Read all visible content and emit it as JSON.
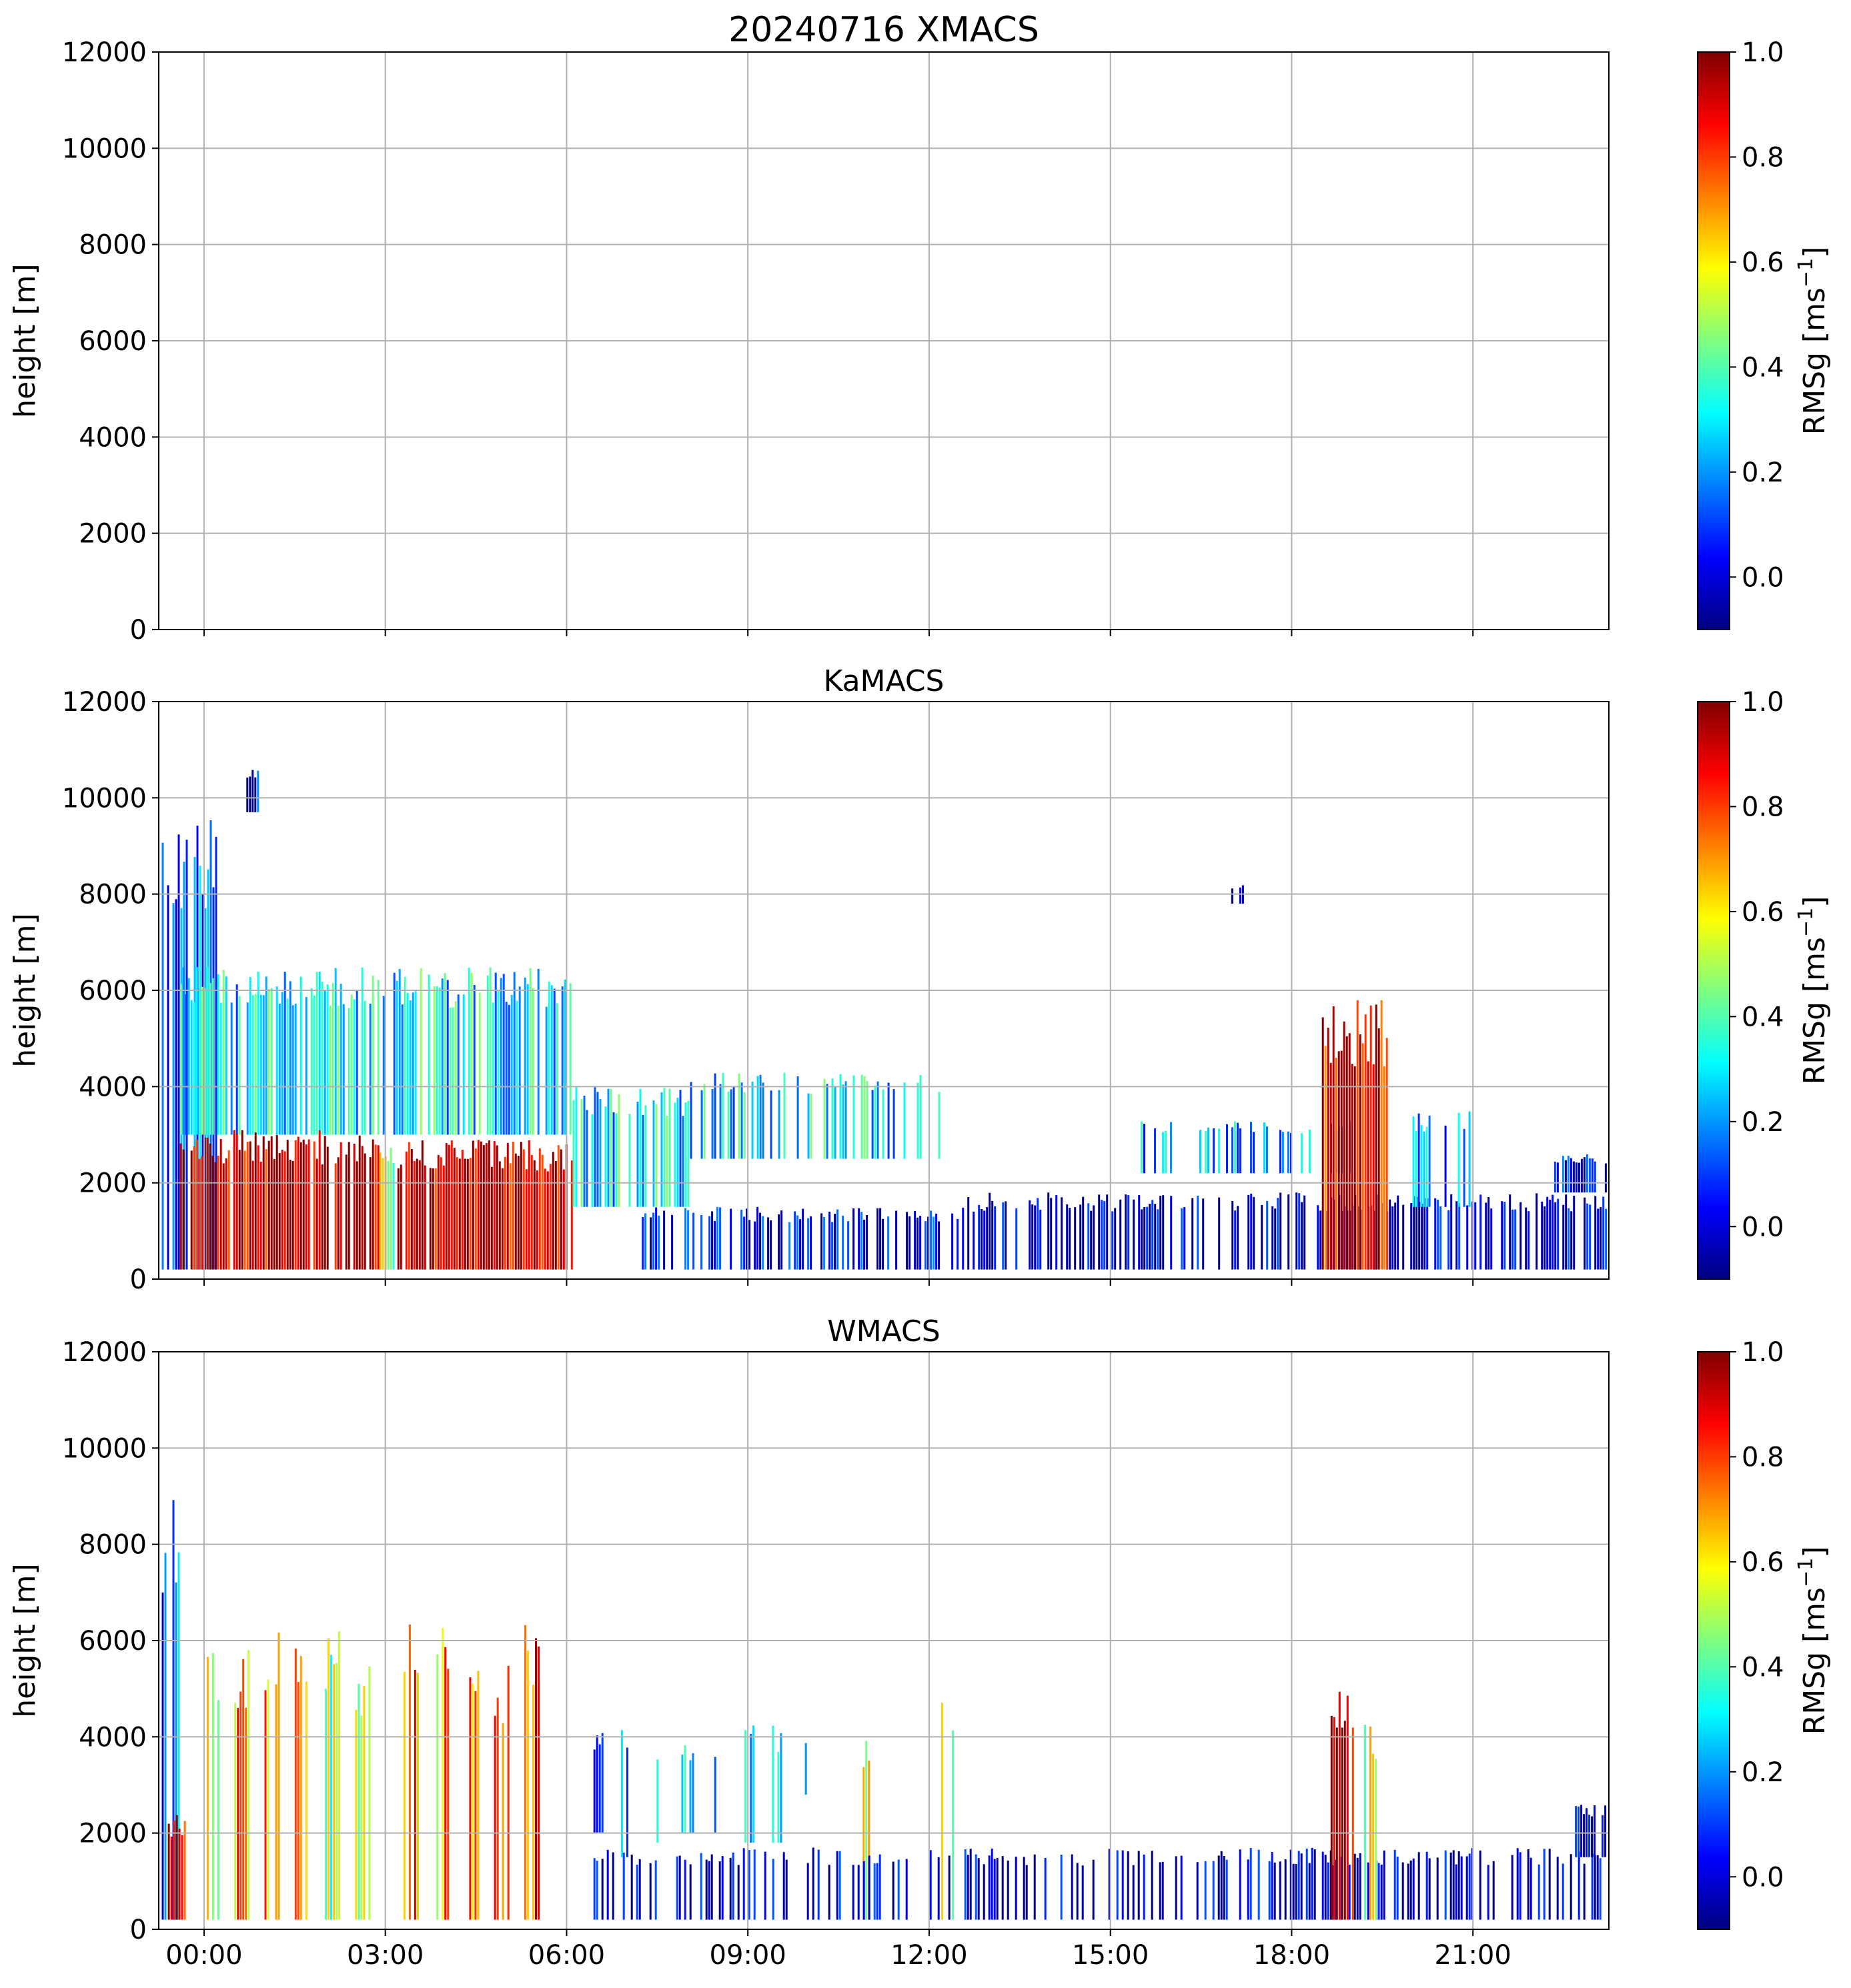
{
  "figure": {
    "title": "20240716 XMACS",
    "colorbar": {
      "label_prefix": "RMSg [ms",
      "label_sup": "−1",
      "label_suffix": "]",
      "min": -0.1,
      "max": 1.0,
      "ticks": [
        "0.0",
        "0.2",
        "0.4",
        "0.6",
        "0.8",
        "1.0"
      ],
      "tick_values": [
        0.0,
        0.2,
        0.4,
        0.6,
        0.8,
        1.0
      ],
      "colormap": "jet"
    }
  },
  "chart_data": [
    {
      "type": "heatmap",
      "title": "20240716 XMACS",
      "xlabel": "",
      "ylabel": "height [m]",
      "ylim": [
        0,
        12000
      ],
      "xlim_hours": [
        -0.75,
        23.25
      ],
      "yticks": [
        "0",
        "2000",
        "4000",
        "6000",
        "8000",
        "10000",
        "12000"
      ],
      "grid": true,
      "features": []
    },
    {
      "type": "heatmap",
      "title": "KaMACS",
      "xlabel": "",
      "ylabel": "height [m]",
      "ylim": [
        0,
        12000
      ],
      "xlim_hours": [
        -0.75,
        23.25
      ],
      "yticks": [
        "0",
        "2000",
        "4000",
        "6000",
        "8000",
        "10000",
        "12000"
      ],
      "grid": true,
      "features": [
        {
          "t0": -0.7,
          "t1": 0.2,
          "bottom": 200,
          "top": 9800,
          "value": 0.2,
          "density": 0.8
        },
        {
          "t0": -0.4,
          "t1": 6.1,
          "bottom": 3000,
          "top": 6500,
          "value": 0.35,
          "density": 0.75
        },
        {
          "t0": -0.4,
          "t1": 2.9,
          "bottom": 200,
          "top": 3100,
          "value": 0.95,
          "density": 0.9
        },
        {
          "t0": 2.9,
          "t1": 3.2,
          "bottom": 200,
          "top": 3000,
          "value": 0.55,
          "density": 0.85
        },
        {
          "t0": 3.2,
          "t1": 6.1,
          "bottom": 200,
          "top": 2900,
          "value": 0.95,
          "density": 0.9
        },
        {
          "t0": 6.1,
          "t1": 8.0,
          "bottom": 1500,
          "top": 4000,
          "value": 0.35,
          "density": 0.7
        },
        {
          "t0": 7.2,
          "t1": 12.5,
          "bottom": 200,
          "top": 1500,
          "value": 0.1,
          "density": 0.55
        },
        {
          "t0": 8.0,
          "t1": 12.2,
          "bottom": 2500,
          "top": 4300,
          "value": 0.35,
          "density": 0.45
        },
        {
          "t0": 12.5,
          "t1": 23.2,
          "bottom": 200,
          "top": 1800,
          "value": 0.05,
          "density": 0.6
        },
        {
          "t0": 15.5,
          "t1": 19.0,
          "bottom": 2200,
          "top": 3300,
          "value": 0.3,
          "density": 0.4
        },
        {
          "t0": 18.5,
          "t1": 19.6,
          "bottom": 200,
          "top": 5800,
          "value": 0.9,
          "density": 0.9
        },
        {
          "t0": 20.0,
          "t1": 21.0,
          "bottom": 1500,
          "top": 3500,
          "value": 0.25,
          "density": 0.45
        },
        {
          "t0": 22.3,
          "t1": 23.2,
          "bottom": 1800,
          "top": 2600,
          "value": 0.1,
          "density": 0.7
        },
        {
          "t0": 0.7,
          "t1": 0.9,
          "bottom": 9700,
          "top": 10600,
          "value": 0.1,
          "density": 0.9
        },
        {
          "t0": 17.0,
          "t1": 17.2,
          "bottom": 7800,
          "top": 8200,
          "value": 0.1,
          "density": 0.9
        }
      ]
    },
    {
      "type": "heatmap",
      "title": "WMACS",
      "xlabel": "",
      "ylabel": "height [m]",
      "ylim": [
        0,
        12000
      ],
      "xlim_hours": [
        -0.75,
        23.25
      ],
      "yticks": [
        "0",
        "2000",
        "4000",
        "6000",
        "8000",
        "10000",
        "12000"
      ],
      "grid": true,
      "features": [
        {
          "t0": -0.7,
          "t1": -0.4,
          "bottom": 200,
          "top": 9200,
          "value": 0.2,
          "density": 0.8
        },
        {
          "t0": -0.6,
          "t1": -0.3,
          "bottom": 200,
          "top": 2400,
          "value": 0.9,
          "density": 0.8
        },
        {
          "t0": 0.0,
          "t1": 0.25,
          "bottom": 200,
          "top": 6200,
          "value": 0.6,
          "density": 0.8
        },
        {
          "t0": 0.5,
          "t1": 0.75,
          "bottom": 200,
          "top": 6000,
          "value": 0.7,
          "density": 0.8
        },
        {
          "t0": 1.0,
          "t1": 1.25,
          "bottom": 200,
          "top": 6300,
          "value": 0.7,
          "density": 0.8
        },
        {
          "t0": 1.5,
          "t1": 1.75,
          "bottom": 200,
          "top": 6200,
          "value": 0.7,
          "density": 0.8
        },
        {
          "t0": 2.0,
          "t1": 2.25,
          "bottom": 200,
          "top": 6300,
          "value": 0.5,
          "density": 0.8
        },
        {
          "t0": 2.5,
          "t1": 2.75,
          "bottom": 200,
          "top": 5800,
          "value": 0.55,
          "density": 0.8
        },
        {
          "t0": 3.3,
          "t1": 3.55,
          "bottom": 200,
          "top": 7000,
          "value": 0.75,
          "density": 0.8
        },
        {
          "t0": 3.8,
          "t1": 4.05,
          "bottom": 200,
          "top": 6700,
          "value": 0.7,
          "density": 0.8
        },
        {
          "t0": 4.3,
          "t1": 4.55,
          "bottom": 200,
          "top": 6300,
          "value": 0.7,
          "density": 0.8
        },
        {
          "t0": 4.8,
          "t1": 5.05,
          "bottom": 200,
          "top": 5600,
          "value": 0.75,
          "density": 0.8
        },
        {
          "t0": 5.3,
          "t1": 5.55,
          "bottom": 200,
          "top": 6500,
          "value": 0.8,
          "density": 0.8
        },
        {
          "t0": 6.4,
          "t1": 6.6,
          "bottom": 2000,
          "top": 4200,
          "value": 0.25,
          "density": 0.6
        },
        {
          "t0": 6.9,
          "t1": 7.1,
          "bottom": 1500,
          "top": 4200,
          "value": 0.3,
          "density": 0.6
        },
        {
          "t0": 7.4,
          "t1": 7.6,
          "bottom": 1800,
          "top": 4000,
          "value": 0.3,
          "density": 0.6
        },
        {
          "t0": 7.9,
          "t1": 8.1,
          "bottom": 2000,
          "top": 3900,
          "value": 0.3,
          "density": 0.6
        },
        {
          "t0": 8.4,
          "t1": 8.6,
          "bottom": 2000,
          "top": 3900,
          "value": 0.35,
          "density": 0.6
        },
        {
          "t0": 8.9,
          "t1": 9.1,
          "bottom": 1800,
          "top": 4300,
          "value": 0.3,
          "density": 0.6
        },
        {
          "t0": 9.4,
          "t1": 9.6,
          "bottom": 1800,
          "top": 4300,
          "value": 0.3,
          "density": 0.5
        },
        {
          "t0": 9.9,
          "t1": 10.1,
          "bottom": 2800,
          "top": 4000,
          "value": 0.25,
          "density": 0.5
        },
        {
          "t0": 10.9,
          "t1": 11.1,
          "bottom": 200,
          "top": 4300,
          "value": 0.6,
          "density": 0.6
        },
        {
          "t0": 12.2,
          "t1": 12.4,
          "bottom": 200,
          "top": 4800,
          "value": 0.6,
          "density": 0.6
        },
        {
          "t0": 6.4,
          "t1": 23.2,
          "bottom": 200,
          "top": 1700,
          "value": 0.05,
          "density": 0.4
        },
        {
          "t0": 18.6,
          "t1": 19.0,
          "bottom": 200,
          "top": 5000,
          "value": 0.95,
          "density": 0.9
        },
        {
          "t0": 19.2,
          "t1": 19.4,
          "bottom": 200,
          "top": 4600,
          "value": 0.6,
          "density": 0.7
        },
        {
          "t0": 22.6,
          "t1": 23.2,
          "bottom": 1500,
          "top": 2600,
          "value": 0.1,
          "density": 0.8
        }
      ]
    }
  ],
  "time_axis": {
    "tick_labels": [
      "00:00",
      "03:00",
      "06:00",
      "09:00",
      "12:00",
      "15:00",
      "18:00",
      "21:00"
    ],
    "tick_hours": [
      0,
      3,
      6,
      9,
      12,
      15,
      18,
      21
    ]
  }
}
